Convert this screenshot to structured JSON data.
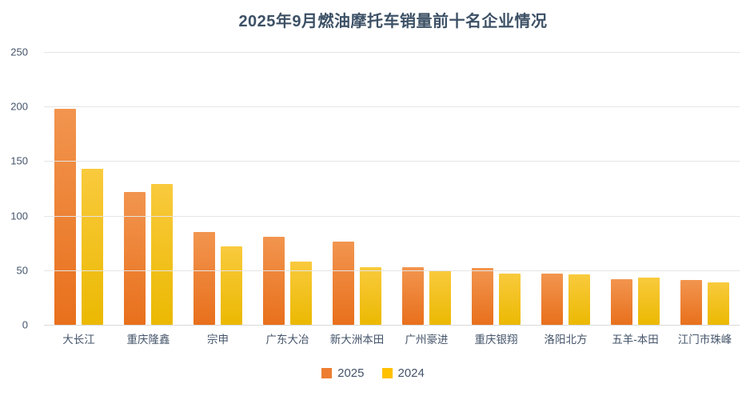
{
  "chart_data": {
    "type": "bar",
    "title": "2025年9月燃油摩托车销量前十名企业情况",
    "categories": [
      "大长江",
      "重庆隆鑫",
      "宗申",
      "广东大冶",
      "新大洲本田",
      "广州豪进",
      "重庆银翔",
      "洛阳北方",
      "五羊-本田",
      "江门市珠峰"
    ],
    "series": [
      {
        "name": "2025",
        "values": [
          198,
          122,
          85,
          81,
          76,
          53,
          52,
          47,
          42,
          41
        ],
        "legend_color": "#ED7D31",
        "gradient_top": "#F2954F",
        "gradient_bottom": "#E8701C"
      },
      {
        "name": "2024",
        "values": [
          143,
          129,
          72,
          58,
          53,
          50,
          47,
          46,
          43,
          39
        ],
        "legend_color": "#FFC000",
        "gradient_top": "#F9CA3D",
        "gradient_bottom": "#EBB902"
      }
    ],
    "xlabel": "",
    "ylabel": "",
    "ylim": [
      0,
      250
    ],
    "yticks": [
      0,
      50,
      100,
      150,
      200,
      250
    ],
    "grid": true,
    "gridline_color": "#E4E4E4",
    "legend_position": "bottom",
    "title_color": "#3D5166",
    "axis_label_color": "#44546A"
  }
}
